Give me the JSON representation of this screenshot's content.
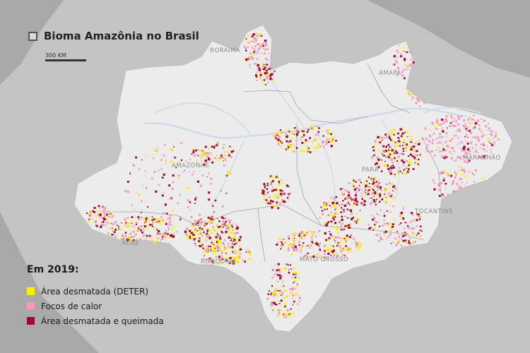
{
  "title": "Bioma Amazônia no Brasil",
  "scale_label": "300 KM",
  "legend": {
    "title": "Em 2019:",
    "items": [
      {
        "label": "Área desmatada (DETER)",
        "color": "#ffee00"
      },
      {
        "label": "Focos de calor",
        "color": "#f49ac1"
      },
      {
        "label": "Área desmatada e queimada",
        "color": "#9e0b2e"
      }
    ]
  },
  "states": [
    "RORAIMA",
    "AMAPÁ",
    "AMAZONAS",
    "PARÁ",
    "MARANHÃO",
    "TOCANTINS",
    "ACRE",
    "RONDÔNIA",
    "MATO GROSSO"
  ],
  "colors": {
    "background": "#a9a9a9",
    "outside_land": "#c6c6c6",
    "biome_fill": "#ececec",
    "rivers": "#cfdbeb",
    "borders": "#9a9a9a"
  }
}
